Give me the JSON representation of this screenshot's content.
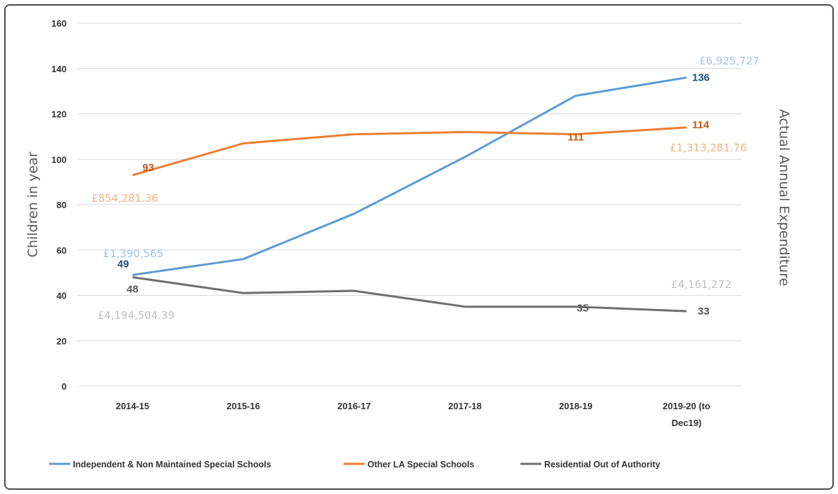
{
  "chart_data": {
    "type": "line",
    "title": "",
    "xlabel": "",
    "ylabel": "Children in year",
    "y2label": "Actual Annual Expenditure",
    "ylim": [
      0,
      160
    ],
    "yticks": [
      0,
      20,
      40,
      60,
      80,
      100,
      120,
      140,
      160
    ],
    "grid": true,
    "legend_position": "bottom",
    "categories": [
      "2014-15",
      "2015-16",
      "2016-17",
      "2017-18",
      "2018-19",
      "2019-20 (to Dec19)"
    ],
    "category_lines": [
      [
        "2014-15"
      ],
      [
        "2015-16"
      ],
      [
        "2016-17"
      ],
      [
        "2017-18"
      ],
      [
        "2018-19"
      ],
      [
        "2019-20 (to",
        "Dec19)"
      ]
    ],
    "series": [
      {
        "name": "Independent & Non Maintained Special Schools",
        "color": "#5b9bd5",
        "values": [
          49,
          56,
          76,
          101,
          128,
          136
        ]
      },
      {
        "name": "Other LA Special Schools",
        "color": "#ed7d31",
        "values": [
          93,
          107,
          111,
          112,
          111,
          114
        ]
      },
      {
        "name": "Residential Out of Authority",
        "color": "#6e6e6e",
        "values": [
          48,
          41,
          42,
          35,
          35,
          33
        ]
      }
    ],
    "data_labels": [
      {
        "text": "49",
        "series": 0,
        "color": "#1f4e79"
      },
      {
        "text": "136",
        "series": 0,
        "color": "#1f4e79"
      },
      {
        "text": "93",
        "series": 1,
        "color": "#c55a11"
      },
      {
        "text": "111",
        "series": 1,
        "color": "#c55a11"
      },
      {
        "text": "114",
        "series": 1,
        "color": "#c55a11"
      },
      {
        "text": "48",
        "series": 2,
        "color": "#595959"
      },
      {
        "text": "35",
        "series": 2,
        "color": "#595959"
      },
      {
        "text": "33",
        "series": 2,
        "color": "#595959"
      }
    ],
    "annotations": [
      {
        "text": "£1,390,565",
        "color": "#9dc3e6"
      },
      {
        "text": "£6,925,727",
        "color": "#9dc3e6"
      },
      {
        "text": "£854,281.36",
        "color": "#f4b183"
      },
      {
        "text": "£1,313,281.76",
        "color": "#f4b183"
      },
      {
        "text": "£4,194,504.39",
        "color": "#bfbfbf"
      },
      {
        "text": "£4,161,272",
        "color": "#bfbfbf"
      }
    ]
  }
}
